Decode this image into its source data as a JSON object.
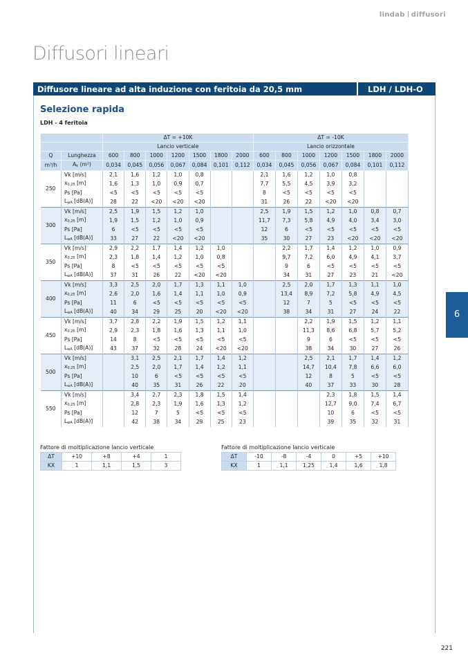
{
  "header": {
    "brand": "lindab",
    "section": "diffusori"
  },
  "title": "Diffusori lineari",
  "banner": {
    "title": "Diffusore lineare ad alta induzione con feritoia da 20,5 mm",
    "code": "LDH / LDH-O"
  },
  "section_title": "Selezione rapida",
  "subtitle": "LDH - 4 feritoia",
  "table": {
    "dt_plus": "ΔT = +10K",
    "dt_minus": "ΔT = -10K",
    "throw_vertical": "Lancio verticale",
    "throw_horizontal": "Lancio orizzontale",
    "q_label": "Q",
    "length_label": "Lunghezza",
    "q_unit": "m³/h",
    "area_label": {
      "text": "A",
      "sub": "k",
      "unit": "(m²)"
    },
    "lengths": [
      600,
      800,
      1000,
      1200,
      1500,
      1800,
      2000,
      600,
      800,
      1000,
      1200,
      1500,
      1800,
      2000
    ],
    "areas": [
      "0,034",
      "0,045",
      "0,056",
      "0,067",
      "0,084",
      "0,101",
      "0,112",
      "0,034",
      "0,045",
      "0,056",
      "0,067",
      "0,084",
      "0,101",
      "0,112"
    ],
    "row_labels": [
      {
        "text": "Vk",
        "sub": null,
        "unit": "[m/s]"
      },
      {
        "text": "x",
        "sub": "0,25",
        "unit": "[m]"
      },
      {
        "text": "Ps",
        "sub": null,
        "unit": "[Pa]"
      },
      {
        "text": "L",
        "sub": "wA",
        "unit": "[dB(A)]"
      }
    ],
    "groups": [
      {
        "q": 250,
        "rows": [
          [
            "2,1",
            "1,6",
            "1,2",
            "1,0",
            "0,8",
            null,
            null,
            "2,1",
            "1,6",
            "1,2",
            "1,0",
            "0,8",
            null,
            null
          ],
          [
            "1,6",
            "1,3",
            "1,0",
            "0,9",
            "0,7",
            null,
            null,
            "7,7",
            "5,5",
            "4,5",
            "3,9",
            "3,2",
            null,
            null
          ],
          [
            "<5",
            "<5",
            "<5",
            "<5",
            "<5",
            null,
            null,
            "8",
            "<5",
            "<5",
            "<5",
            "<5",
            null,
            null
          ],
          [
            "28",
            "22",
            "<20",
            "<20",
            "<20",
            null,
            null,
            "31",
            "26",
            "22",
            "<20",
            "<20",
            null,
            null
          ]
        ]
      },
      {
        "q": 300,
        "rows": [
          [
            "2,5",
            "1,9",
            "1,5",
            "1,2",
            "1,0",
            null,
            null,
            "2,5",
            "1,9",
            "1,5",
            "1,2",
            "1,0",
            "0,8",
            "0,7"
          ],
          [
            "1,9",
            "1,5",
            "1,2",
            "1,0",
            "0,9",
            null,
            null,
            "11,7",
            "7,3",
            "5,8",
            "4,9",
            "4,0",
            "3,4",
            "3,0"
          ],
          [
            "6",
            "<5",
            "<5",
            "<5",
            "<5",
            null,
            null,
            "12",
            "6",
            "<5",
            "<5",
            "<5",
            "<5",
            "<5"
          ],
          [
            "33",
            "27",
            "22",
            "<20",
            "<20",
            null,
            null,
            "35",
            "30",
            "27",
            "23",
            "<20",
            "<20",
            "<20"
          ]
        ]
      },
      {
        "q": 350,
        "rows": [
          [
            "2,9",
            "2,2",
            "1,7",
            "1,4",
            "1,2",
            "1,0",
            null,
            null,
            "2,2",
            "1,7",
            "1,4",
            "1,2",
            "1,0",
            "0,9"
          ],
          [
            "2,3",
            "1,8",
            "1,4",
            "1,2",
            "1,0",
            "0,8",
            null,
            null,
            "9,7",
            "7,2",
            "6,0",
            "4,9",
            "4,1",
            "3,7"
          ],
          [
            "8",
            "<5",
            "<5",
            "<5",
            "<5",
            "<5",
            null,
            null,
            "9",
            "6",
            "<5",
            "<5",
            "<5",
            "<5"
          ],
          [
            "37",
            "31",
            "26",
            "22",
            "<20",
            "<20",
            null,
            null,
            "34",
            "31",
            "27",
            "23",
            "21",
            "<20"
          ]
        ]
      },
      {
        "q": 400,
        "rows": [
          [
            "3,3",
            "2,5",
            "2,0",
            "1,7",
            "1,3",
            "1,1",
            "1,0",
            null,
            "2,5",
            "2,0",
            "1,7",
            "1,3",
            "1,1",
            "1,0"
          ],
          [
            "2,6",
            "2,0",
            "1,6",
            "1,4",
            "1,1",
            "1,0",
            "0,9",
            null,
            "13,4",
            "8,9",
            "7,2",
            "5,8",
            "4,9",
            "4,5"
          ],
          [
            "11",
            "6",
            "<5",
            "<5",
            "<5",
            "<5",
            "<5",
            null,
            "12",
            "7",
            "5",
            "<5",
            "<5",
            "<5"
          ],
          [
            "40",
            "34",
            "29",
            "25",
            "20",
            "<20",
            "<20",
            null,
            "38",
            "34",
            "31",
            "27",
            "24",
            "22"
          ]
        ]
      },
      {
        "q": 450,
        "rows": [
          [
            "3,7",
            "2,8",
            "2,2",
            "1,9",
            "1,5",
            "1,2",
            "1,1",
            null,
            null,
            "2,2",
            "1,9",
            "1,5",
            "1,2",
            "1,1"
          ],
          [
            "2,9",
            "2,3",
            "1,8",
            "1,6",
            "1,3",
            "1,1",
            "1,0",
            null,
            null,
            "11,3",
            "8,6",
            "6,8",
            "5,7",
            "5,2"
          ],
          [
            "14",
            "8",
            "<5",
            "<5",
            "<5",
            "<5",
            "<5",
            null,
            null,
            "9",
            "6",
            "<5",
            "<5",
            "<5"
          ],
          [
            "43",
            "37",
            "32",
            "28",
            "24",
            "<20",
            "<20",
            null,
            null,
            "38",
            "34",
            "30",
            "27",
            "26"
          ]
        ]
      },
      {
        "q": 500,
        "rows": [
          [
            null,
            "3,1",
            "2,5",
            "2,1",
            "1,7",
            "1,4",
            "1,2",
            null,
            null,
            "2,5",
            "2,1",
            "1,7",
            "1,4",
            "1,2"
          ],
          [
            null,
            "2,5",
            "2,0",
            "1,7",
            "1,4",
            "1,2",
            "1,1",
            null,
            null,
            "14,7",
            "10,4",
            "7,8",
            "6,6",
            "6,0"
          ],
          [
            null,
            "10",
            "6",
            "<5",
            "<5",
            "<5",
            "<5",
            null,
            null,
            "12",
            "8",
            "5",
            "<5",
            "<5"
          ],
          [
            null,
            "40",
            "35",
            "31",
            "26",
            "22",
            "20",
            null,
            null,
            "40",
            "37",
            "33",
            "30",
            "28"
          ]
        ]
      },
      {
        "q": 550,
        "rows": [
          [
            null,
            "3,4",
            "2,7",
            "2,3",
            "1,8",
            "1,5",
            "1,4",
            null,
            null,
            null,
            "2,3",
            "1,8",
            "1,5",
            "1,4"
          ],
          [
            null,
            "2,8",
            "2,3",
            "1,9",
            "1,6",
            "1,3",
            "1,2",
            null,
            null,
            null,
            "12,7",
            "9,0",
            "7,4",
            "6,7"
          ],
          [
            null,
            "12",
            "7",
            "5",
            "<5",
            "<5",
            "<5",
            null,
            null,
            null,
            "10",
            "6",
            "<5",
            "<5"
          ],
          [
            null,
            "42",
            "38",
            "34",
            "29",
            "25",
            "23",
            null,
            null,
            null,
            "39",
            "35",
            "32",
            "31"
          ]
        ]
      }
    ]
  },
  "factors": [
    {
      "title": "Fattore di moltiplicazione lancio verticale",
      "labels": [
        "ΔT",
        "KX"
      ],
      "dt": [
        "+10",
        "+8",
        "+4",
        "1"
      ],
      "kx": [
        "1",
        "1,1",
        "1,5",
        "3"
      ]
    },
    {
      "title": "Fattore di moltiplicazione lancio verticale",
      "labels": [
        "ΔT",
        "KX"
      ],
      "dt": [
        "-10",
        "-8",
        "-4",
        "0",
        "+5",
        "+10"
      ],
      "kx": [
        "1",
        "1,1",
        "1,25",
        "1,4",
        "1,6",
        "1,8"
      ]
    }
  ],
  "tab": "6",
  "page_number": "221"
}
